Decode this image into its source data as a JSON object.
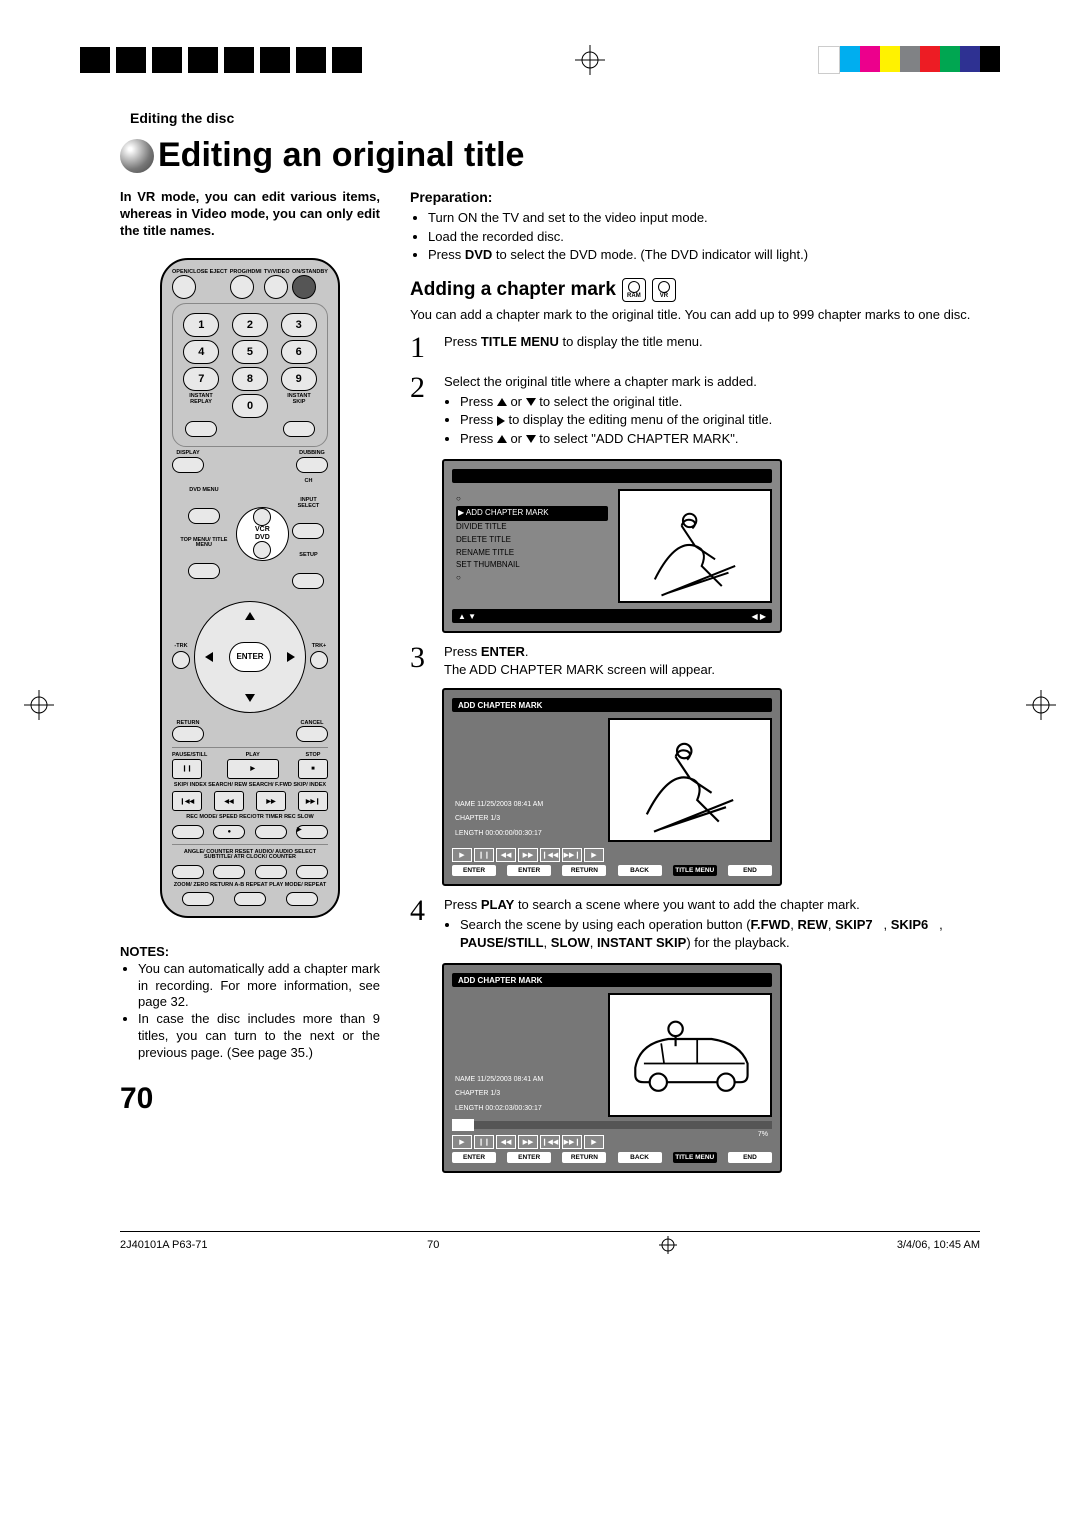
{
  "section_label": "Editing the disc",
  "main_title": "Editing an original title",
  "intro": "In VR mode, you can edit various items, whereas in Video mode, you can only edit the title names.",
  "preparation": {
    "heading": "Preparation:",
    "items": [
      "Turn ON the TV and set to the video input mode.",
      "Load the recorded disc.",
      "Press <b>DVD</b> to select the DVD mode. (The DVD indicator will light.)"
    ]
  },
  "adding": {
    "heading": "Adding a chapter mark",
    "disc_icons": [
      "RAM",
      "VR"
    ],
    "intro": "You can add a chapter mark to the original title. You can add up to 999 chapter marks to one disc."
  },
  "steps": [
    {
      "num": "1",
      "body": "Press <b>TITLE MENU</b> to display the title menu."
    },
    {
      "num": "2",
      "body": "Select the original title where a chapter mark is added.",
      "bullets": [
        "Press ▲ or ▼ to select the original title.",
        "Press ▶ to display the editing menu of the original title.",
        "Press ▲ or ▼ to select \"ADD CHAPTER MARK\"."
      ]
    },
    {
      "num": "3",
      "body": "Press <b>ENTER</b>.<br>The ADD CHAPTER MARK screen will appear."
    },
    {
      "num": "4",
      "body": "Press <b>PLAY</b> to search a scene where you want to add the chapter mark.",
      "bullets": [
        "Search the scene by using each operation button (<b>F.FWD</b>, <b>REW</b>, <b>SKIP7</b>&nbsp;&nbsp;&nbsp;, <b>SKIP6</b>&nbsp;&nbsp;&nbsp;, <b>PAUSE/STILL</b>, <b>SLOW</b>, <b>INSTANT SKIP</b>) for the playback."
      ]
    }
  ],
  "osd1": {
    "menu_items": [
      "▶ ADD CHAPTER MARK",
      "DIVIDE TITLE",
      "DELETE TITLE",
      "RENAME TITLE",
      "SET THUMBNAIL"
    ],
    "foot_l": "▲ ▼",
    "foot_r": "◀ ▶"
  },
  "osd2": {
    "header": "ADD CHAPTER MARK",
    "name": "NAME   11/25/2003 08:41 AM",
    "chapter": "CHAPTER                        1/3",
    "length": "LENGTH   00:00:00/00:30:17",
    "trans": [
      "▶",
      "❙❙",
      "◀◀",
      "▶▶",
      "❙◀◀",
      "▶▶❙",
      "▶"
    ],
    "btns": [
      "ENTER",
      "ENTER",
      "RETURN",
      "BACK",
      "TITLE MENU",
      "END"
    ]
  },
  "osd3": {
    "header": "ADD CHAPTER MARK",
    "name": "NAME   11/25/2003 08:41 AM",
    "chapter": "CHAPTER                        1/3",
    "length": "LENGTH   00:02:03/00:30:17",
    "pct": "7%",
    "trans": [
      "▶",
      "❙❙",
      "◀◀",
      "▶▶",
      "❙◀◀",
      "▶▶❙",
      "▶"
    ],
    "btns": [
      "ENTER",
      "ENTER",
      "RETURN",
      "BACK",
      "TITLE MENU",
      "END"
    ]
  },
  "notes": {
    "heading": "NOTES:",
    "items": [
      "You can automatically add a chapter mark in recording. For more information, see page 32.",
      "In case the disc includes more than 9 titles, you can turn to the next or the previous page. (See page 35.)"
    ]
  },
  "pagenum": "70",
  "footer": {
    "left": "2J40101A P63-71",
    "mid": "70",
    "right": "3/4/06, 10:45 AM"
  },
  "swatches": [
    "#ffffff",
    "#00aeef",
    "#ec008c",
    "#fff200",
    "#808285",
    "#ed1c24",
    "#00a651",
    "#2e3192",
    "#000000"
  ],
  "remote": {
    "top_labels": [
      "OPEN/CLOSE EJECT",
      "PROG/HDMI",
      "TV/VIDEO",
      "ON/STANDBY"
    ],
    "numpad": [
      "1",
      "2",
      "3",
      "4",
      "5",
      "6",
      "7",
      "8",
      "9",
      "0"
    ],
    "side_l": "INSTANT REPLAY",
    "side_r": "INSTANT SKIP",
    "row2_l": "DISPLAY",
    "row2_r": "DUBBING",
    "vcr": "VCR",
    "dvd": "DVD",
    "ch": "CH",
    "dvd_menu": "DVD MENU",
    "input_sel": "INPUT SELECT",
    "top_menu": "TOP MENU/ TITLE MENU",
    "setup": "SETUP",
    "trk_l": "-TRK",
    "trk_r": "TRK+",
    "enter": "ENTER",
    "return": "RETURN",
    "cancel": "CANCEL",
    "pause": "PAUSE/STILL",
    "play": "PLAY",
    "stop": "STOP",
    "trans_labels": "SKIP/ INDEX   SEARCH/ REW   SEARCH/ F.FWD   SKIP/ INDEX",
    "rec": "REC MODE/ SPEED   REC/OTR   TIMER REC   SLOW",
    "bottom1": "ANGLE/ COUNTER RESET   AUDIO/ AUDIO SELECT   SUBTITLE/ ATR   CLOCK/ COUNTER",
    "bottom2": "ZOOM/ ZERO RETURN   A-B REPEAT   PLAY MODE/ REPEAT"
  }
}
